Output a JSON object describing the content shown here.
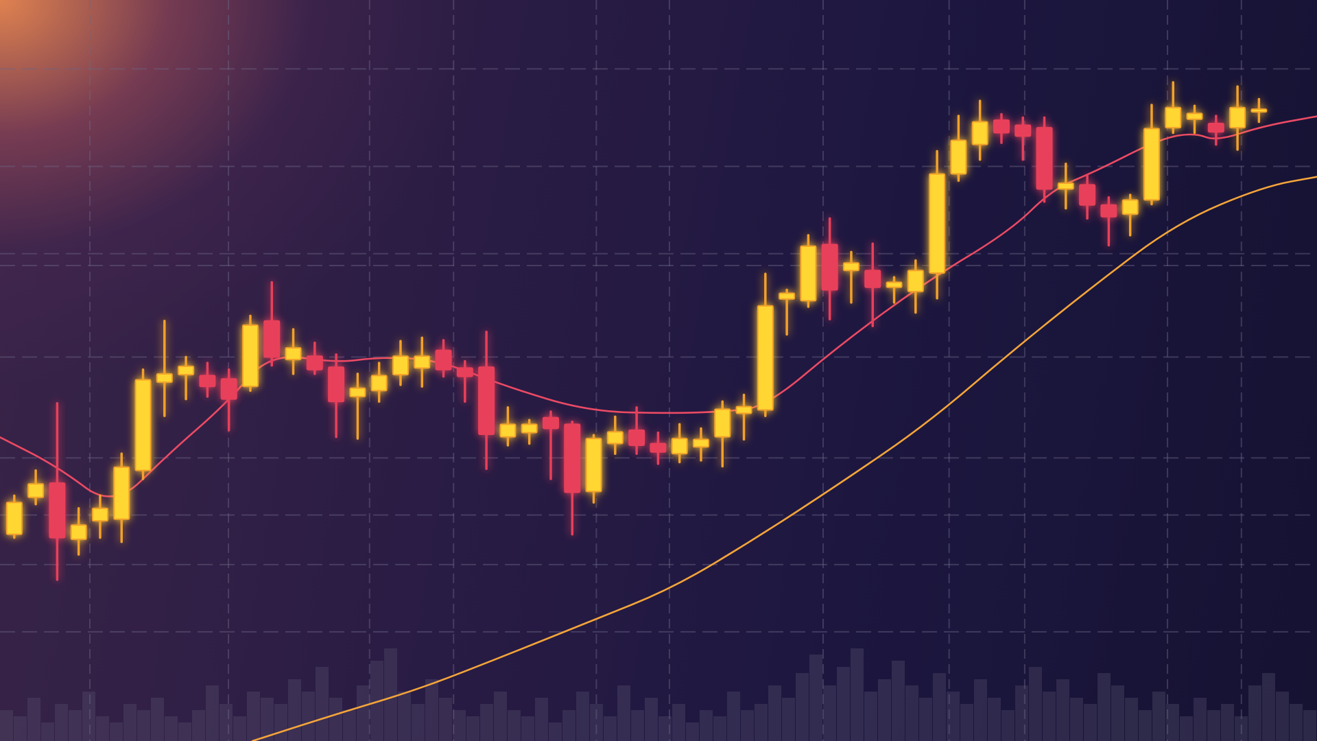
{
  "chart_data": {
    "type": "candlestick",
    "title": "",
    "xlabel": "",
    "ylabel": "",
    "grid": true,
    "legend": "none",
    "colors": {
      "bull": "#ffd633",
      "bull_outline": "#f2a22c",
      "bear": "#e8405a",
      "fast_ma": "#ec4a64",
      "slow_ma": "#f4a53a",
      "volume": "#5a5470",
      "grid": "#6d6585"
    },
    "candles": [
      {
        "o": 26.4,
        "h": 31.0,
        "l": 26.0,
        "c": 30.2
      },
      {
        "o": 30.8,
        "h": 34.0,
        "l": 30.0,
        "c": 32.4
      },
      {
        "o": 32.5,
        "h": 42.0,
        "l": 21.0,
        "c": 26.0
      },
      {
        "o": 25.8,
        "h": 29.5,
        "l": 24.0,
        "c": 27.5
      },
      {
        "o": 28.0,
        "h": 31.0,
        "l": 26.0,
        "c": 29.5
      },
      {
        "o": 28.2,
        "h": 36.0,
        "l": 25.5,
        "c": 34.4
      },
      {
        "o": 34.0,
        "h": 46.0,
        "l": 33.0,
        "c": 44.8
      },
      {
        "o": 44.5,
        "h": 51.8,
        "l": 40.5,
        "c": 45.5
      },
      {
        "o": 45.4,
        "h": 47.5,
        "l": 42.5,
        "c": 46.4
      },
      {
        "o": 45.3,
        "h": 46.8,
        "l": 42.8,
        "c": 44.0
      },
      {
        "o": 44.9,
        "h": 46.0,
        "l": 38.8,
        "c": 42.5
      },
      {
        "o": 44.0,
        "h": 52.4,
        "l": 43.5,
        "c": 51.3
      },
      {
        "o": 51.8,
        "h": 56.4,
        "l": 46.5,
        "c": 47.5
      },
      {
        "o": 47.2,
        "h": 50.8,
        "l": 45.5,
        "c": 48.6
      },
      {
        "o": 47.6,
        "h": 49.2,
        "l": 45.5,
        "c": 46.0
      },
      {
        "o": 46.3,
        "h": 47.8,
        "l": 38.0,
        "c": 42.2
      },
      {
        "o": 42.8,
        "h": 45.5,
        "l": 37.8,
        "c": 43.8
      },
      {
        "o": 43.5,
        "h": 46.8,
        "l": 42.2,
        "c": 45.3
      },
      {
        "o": 45.4,
        "h": 49.4,
        "l": 44.2,
        "c": 47.6
      },
      {
        "o": 46.2,
        "h": 49.8,
        "l": 44.0,
        "c": 47.6
      },
      {
        "o": 48.3,
        "h": 49.5,
        "l": 45.2,
        "c": 46.0
      },
      {
        "o": 46.2,
        "h": 47.0,
        "l": 42.2,
        "c": 45.2
      },
      {
        "o": 46.3,
        "h": 50.5,
        "l": 34.2,
        "c": 38.3
      },
      {
        "o": 38.0,
        "h": 41.5,
        "l": 37.0,
        "c": 39.5
      },
      {
        "o": 38.5,
        "h": 40.0,
        "l": 37.2,
        "c": 39.5
      },
      {
        "o": 40.3,
        "h": 41.0,
        "l": 33.0,
        "c": 39.0
      },
      {
        "o": 39.5,
        "h": 39.8,
        "l": 26.4,
        "c": 31.4
      },
      {
        "o": 31.5,
        "h": 38.2,
        "l": 30.2,
        "c": 37.8
      },
      {
        "o": 37.2,
        "h": 40.4,
        "l": 36.0,
        "c": 38.6
      },
      {
        "o": 38.8,
        "h": 41.5,
        "l": 36.0,
        "c": 37.0
      },
      {
        "o": 37.2,
        "h": 38.5,
        "l": 34.8,
        "c": 36.2
      },
      {
        "o": 36.0,
        "h": 39.5,
        "l": 35.0,
        "c": 37.8
      },
      {
        "o": 36.8,
        "h": 39.0,
        "l": 35.2,
        "c": 37.7
      },
      {
        "o": 38.0,
        "h": 42.2,
        "l": 34.5,
        "c": 41.3
      },
      {
        "o": 40.8,
        "h": 43.0,
        "l": 37.7,
        "c": 41.6
      },
      {
        "o": 41.2,
        "h": 57.4,
        "l": 40.5,
        "c": 53.6
      },
      {
        "o": 54.4,
        "h": 55.5,
        "l": 50.2,
        "c": 55.1
      },
      {
        "o": 54.2,
        "h": 62.0,
        "l": 53.5,
        "c": 60.7
      },
      {
        "o": 60.9,
        "h": 64.0,
        "l": 52.0,
        "c": 55.5
      },
      {
        "o": 57.8,
        "h": 60.0,
        "l": 54.0,
        "c": 58.7
      },
      {
        "o": 57.8,
        "h": 61.0,
        "l": 51.2,
        "c": 55.8
      },
      {
        "o": 55.8,
        "h": 57.0,
        "l": 54.0,
        "c": 56.4
      },
      {
        "o": 55.3,
        "h": 59.0,
        "l": 52.8,
        "c": 57.8
      },
      {
        "o": 57.5,
        "h": 72.0,
        "l": 54.5,
        "c": 69.3
      },
      {
        "o": 69.3,
        "h": 76.2,
        "l": 68.5,
        "c": 73.3
      },
      {
        "o": 72.8,
        "h": 78.0,
        "l": 71.0,
        "c": 75.5
      },
      {
        "o": 75.7,
        "h": 76.4,
        "l": 73.0,
        "c": 74.2
      },
      {
        "o": 75.1,
        "h": 76.0,
        "l": 71.0,
        "c": 73.8
      },
      {
        "o": 74.8,
        "h": 76.0,
        "l": 66.0,
        "c": 67.5
      },
      {
        "o": 67.5,
        "h": 70.5,
        "l": 65.2,
        "c": 68.2
      },
      {
        "o": 68.0,
        "h": 69.2,
        "l": 64.0,
        "c": 65.6
      },
      {
        "o": 65.6,
        "h": 66.5,
        "l": 60.8,
        "c": 64.2
      },
      {
        "o": 64.5,
        "h": 66.8,
        "l": 62.0,
        "c": 66.2
      },
      {
        "o": 66.2,
        "h": 77.5,
        "l": 65.7,
        "c": 74.7
      },
      {
        "o": 74.8,
        "h": 80.2,
        "l": 74.2,
        "c": 77.2
      },
      {
        "o": 75.8,
        "h": 77.4,
        "l": 74.2,
        "c": 76.5
      },
      {
        "o": 75.3,
        "h": 76.2,
        "l": 72.8,
        "c": 74.3
      },
      {
        "o": 74.8,
        "h": 79.7,
        "l": 72.2,
        "c": 77.2
      },
      {
        "o": 76.9,
        "h": 78.2,
        "l": 75.5,
        "c": 77.0
      }
    ],
    "series": [
      {
        "type": "line",
        "points": [
          [
            -0.7,
            38.0
          ],
          [
            2,
            34.5
          ],
          [
            4.6,
            29.5
          ],
          [
            7.2,
            36.0
          ],
          [
            9.9,
            42.0
          ],
          [
            11.9,
            48.0
          ],
          [
            15,
            46.8
          ],
          [
            17,
            47.5
          ],
          [
            19.7,
            47.2
          ],
          [
            22.9,
            44.0
          ],
          [
            26.8,
            41.0
          ],
          [
            30.7,
            40.8
          ],
          [
            33,
            41.0
          ],
          [
            35,
            41.5
          ],
          [
            38.5,
            49.0
          ],
          [
            42.5,
            56.5
          ],
          [
            46.4,
            62.5
          ],
          [
            48.4,
            67.5
          ],
          [
            50.3,
            69.5
          ],
          [
            53.4,
            73.5
          ],
          [
            55,
            74.2
          ],
          [
            56,
            73.2
          ],
          [
            58.2,
            75.0
          ],
          [
            60.8,
            76.2
          ]
        ]
      },
      {
        "type": "line",
        "points": [
          [
            11.1,
            1.8
          ],
          [
            15,
            5.0
          ],
          [
            18.9,
            8.0
          ],
          [
            22.9,
            12.0
          ],
          [
            26.8,
            16.0
          ],
          [
            30.7,
            20.0
          ],
          [
            34.6,
            26.0
          ],
          [
            38.5,
            32.5
          ],
          [
            42.5,
            39.5
          ],
          [
            46.4,
            48.0
          ],
          [
            50.3,
            56.0
          ],
          [
            54.2,
            63.5
          ],
          [
            58.2,
            67.8
          ],
          [
            60.8,
            69.0
          ]
        ]
      }
    ],
    "volume": [
      5,
      4,
      7,
      3,
      6,
      5,
      8,
      4,
      3,
      6,
      5,
      7,
      4,
      3,
      5,
      9,
      6,
      4,
      8,
      7,
      6,
      10,
      8,
      12,
      7,
      5,
      9,
      13,
      15,
      8,
      6,
      10,
      7,
      5,
      4,
      6,
      8,
      5,
      4,
      7,
      3,
      5,
      8,
      6,
      4,
      9,
      5,
      7,
      4,
      6,
      3,
      5,
      4,
      8,
      5,
      6,
      9,
      7,
      11,
      14,
      9,
      12,
      15,
      8,
      10,
      13,
      9,
      7,
      11,
      8,
      6,
      10,
      7,
      5,
      9,
      12,
      8,
      10,
      7,
      6,
      11,
      9,
      7,
      5,
      8,
      6,
      4,
      7,
      5,
      6,
      4,
      9,
      11,
      8,
      6,
      5
    ]
  }
}
